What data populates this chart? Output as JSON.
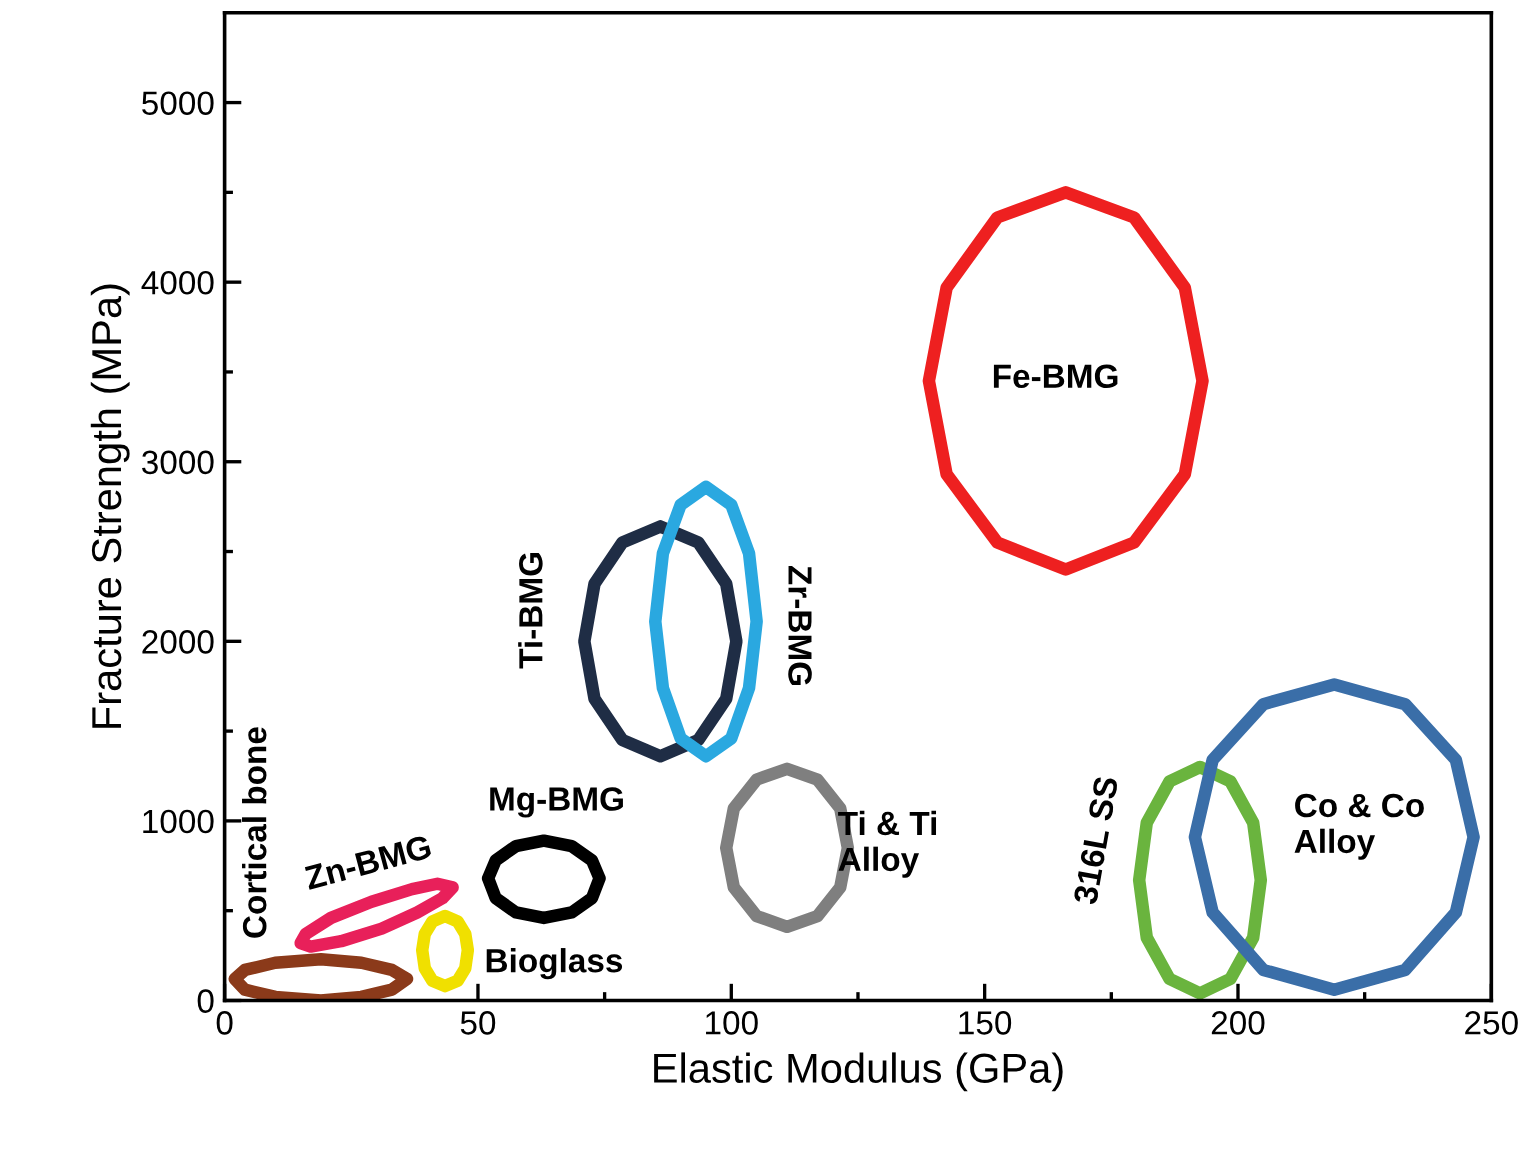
{
  "chart_data": {
    "type": "line",
    "xlabel": "Elastic Modulus (GPa)",
    "ylabel": "Fracture Strength (MPa)",
    "xlim": [
      0,
      250
    ],
    "xticks": [
      0,
      50,
      100,
      150,
      200,
      250
    ],
    "ylim": [
      0,
      5500
    ],
    "yticks": [
      0,
      1000,
      2000,
      3000,
      4000,
      5000
    ],
    "grid": false,
    "series": [
      {
        "name": "Cortical bone",
        "color": "#8b3a1a",
        "x": [
          2,
          4,
          10,
          19,
          27,
          33,
          36,
          null,
          2,
          4,
          10,
          19,
          27,
          33,
          36
        ],
        "values": [
          120,
          170,
          210,
          230,
          210,
          170,
          120,
          null,
          120,
          60,
          20,
          0,
          20,
          60,
          120
        ]
      },
      {
        "name": "Zn-BMG",
        "color": "#e8205a",
        "x": [
          15,
          17,
          23,
          31,
          38,
          43,
          45,
          null,
          15,
          16,
          21,
          29,
          37,
          42,
          45
        ],
        "values": [
          320,
          300,
          330,
          400,
          490,
          570,
          630,
          null,
          320,
          370,
          460,
          550,
          620,
          650,
          630
        ]
      },
      {
        "name": "Bioglass",
        "color": "#f0e000",
        "x": [
          39,
          39.5,
          41,
          43.5,
          46,
          47.5,
          48,
          null,
          39,
          39.5,
          41,
          43.5,
          46,
          47.5,
          48
        ],
        "values": [
          280,
          370,
          440,
          470,
          440,
          370,
          280,
          null,
          280,
          180,
          110,
          80,
          110,
          180,
          280
        ]
      },
      {
        "name": "Mg-BMG",
        "color": "#000000",
        "x": [
          52,
          53.5,
          57.5,
          63,
          68.5,
          72.5,
          74,
          null,
          52,
          53.5,
          57.5,
          63,
          68.5,
          72.5,
          74
        ],
        "values": [
          680,
          780,
          860,
          890,
          860,
          780,
          680,
          null,
          680,
          570,
          490,
          460,
          490,
          570,
          680
        ]
      },
      {
        "name": "Ti-BMG",
        "color": "#1f2d45",
        "x": [
          71,
          73,
          78.5,
          86,
          93.5,
          99,
          101,
          null,
          71,
          73,
          78.5,
          86,
          93.5,
          99,
          101
        ],
        "values": [
          2000,
          2320,
          2550,
          2640,
          2550,
          2320,
          2000,
          null,
          2000,
          1680,
          1450,
          1360,
          1450,
          1680,
          2000
        ]
      },
      {
        "name": "Zr-BMG",
        "color": "#2aa8e0",
        "x": [
          85,
          86.5,
          90,
          95,
          100,
          103.5,
          105,
          null,
          85,
          86.5,
          90,
          95,
          100,
          103.5,
          105
        ],
        "values": [
          2110,
          2490,
          2760,
          2860,
          2760,
          2490,
          2110,
          null,
          2110,
          1740,
          1460,
          1360,
          1460,
          1740,
          2110
        ]
      },
      {
        "name": "Ti & Ti\nAlloy",
        "color": "#7f7f7f",
        "x": [
          99,
          100.5,
          105,
          111,
          117,
          121.5,
          123,
          null,
          99,
          100.5,
          105,
          111,
          117,
          121.5,
          123
        ],
        "values": [
          850,
          1070,
          1230,
          1290,
          1230,
          1070,
          850,
          null,
          850,
          630,
          470,
          410,
          470,
          630,
          850
        ]
      },
      {
        "name": "316L SS",
        "color": "#6ab43e",
        "x": [
          180.5,
          182,
          186.5,
          192.5,
          198.5,
          203,
          204.5,
          null,
          180.5,
          182,
          186.5,
          192.5,
          198.5,
          203,
          204.5
        ],
        "values": [
          670,
          990,
          1220,
          1300,
          1220,
          990,
          670,
          null,
          670,
          350,
          120,
          40,
          120,
          350,
          670
        ]
      },
      {
        "name": "Co & Co\nAlloy",
        "color": "#3a6ea8",
        "x": [
          191.5,
          195,
          205,
          219,
          233,
          243,
          246.5,
          null,
          191.5,
          195,
          205,
          219,
          233,
          243,
          246.5
        ],
        "values": [
          910,
          1340,
          1650,
          1760,
          1650,
          1340,
          910,
          null,
          910,
          490,
          170,
          60,
          170,
          490,
          910
        ]
      },
      {
        "name": "Fe-BMG",
        "color": "#ee2020",
        "x": [
          139,
          142.5,
          152.5,
          166,
          179.5,
          189.5,
          193,
          null,
          139,
          142.5,
          152.5,
          166,
          179.5,
          189.5,
          193
        ],
        "values": [
          3450,
          3970,
          4360,
          4500,
          4360,
          3970,
          3450,
          null,
          3450,
          2930,
          2550,
          2400,
          2550,
          2930,
          3450
        ]
      }
    ]
  }
}
